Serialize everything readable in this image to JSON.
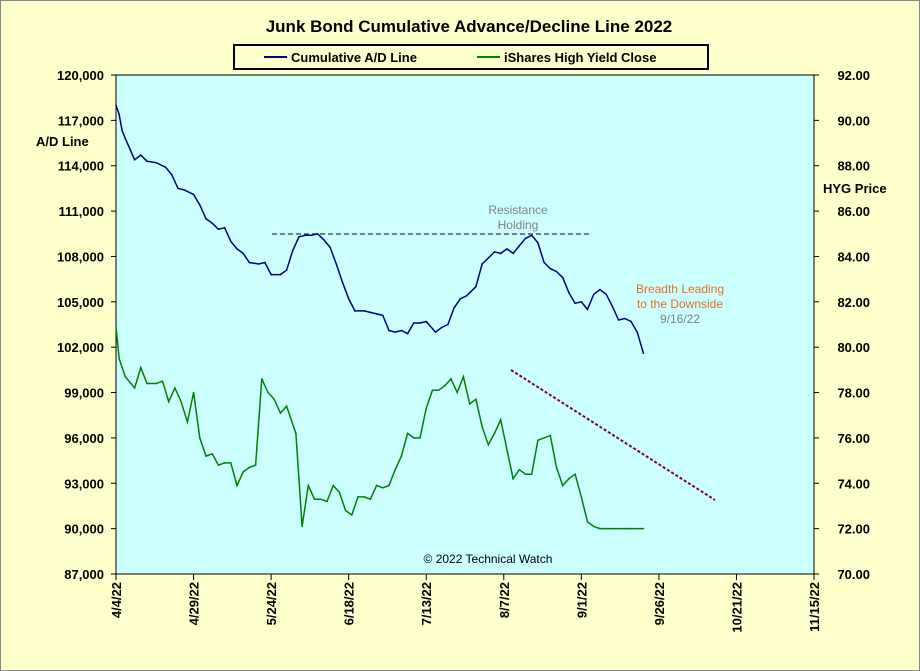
{
  "chart_data": {
    "type": "line",
    "title": "Junk Bond Cumulative  Advance/Decline  Line 2022",
    "ylabel_left": "A/D Line",
    "ylabel_right": "HYG Price",
    "ylim_left": [
      87000,
      120000
    ],
    "ylim_right": [
      70,
      92
    ],
    "left_ticks": [
      "120,000",
      "117,000",
      "114,000",
      "111,000",
      "108,000",
      "105,000",
      "102,000",
      "99,000",
      "96,000",
      "93,000",
      "90,000",
      "87,000"
    ],
    "right_ticks": [
      "92.00",
      "90.00",
      "88.00",
      "86.00",
      "84.00",
      "82.00",
      "80.00",
      "78.00",
      "76.00",
      "74.00",
      "72.00",
      "70.00"
    ],
    "x_ticks": [
      "4/4/22",
      "4/29/22",
      "5/24/22",
      "6/18/22",
      "7/13/22",
      "8/7/22",
      "9/1/22",
      "9/26/22",
      "10/21/22",
      "11/15/22"
    ],
    "legend": {
      "placement": "top-center",
      "items": [
        "Cumulative A/D Line",
        "iShares High Yield Close"
      ]
    },
    "colors": {
      "ad_line": "#000080",
      "hyg": "#008000",
      "plot_bg": "#CCFFFF",
      "page_bg": "#FFFFCC",
      "trend": "#800040",
      "resistance": "#555555"
    },
    "series": [
      {
        "name": "Cumulative A/D Line",
        "axis": "left",
        "x": [
          0,
          1,
          2,
          3,
          6,
          8,
          10,
          13,
          16,
          18,
          20,
          22,
          25,
          27,
          29,
          31,
          33,
          35,
          37,
          39,
          41,
          43,
          46,
          48,
          50,
          53,
          55,
          57,
          59,
          61,
          63,
          65,
          67,
          69,
          71,
          73,
          75,
          77,
          80,
          82,
          84,
          86,
          88,
          90,
          92,
          94,
          96,
          98,
          100,
          103,
          105,
          107,
          109,
          111,
          113,
          116,
          118,
          120,
          122,
          124,
          126,
          128,
          130,
          132,
          134,
          136,
          138,
          140,
          142,
          144,
          146,
          148,
          150,
          152,
          154,
          156,
          158,
          160,
          162,
          164,
          166,
          168,
          170
        ],
        "values": [
          118000,
          117400,
          116300,
          115800,
          114400,
          114700,
          114300,
          114200,
          113900,
          113400,
          112500,
          112400,
          112100,
          111400,
          110500,
          110200,
          109800,
          109900,
          109000,
          108500,
          108200,
          107600,
          107500,
          107600,
          106800,
          106800,
          107100,
          108400,
          109300,
          109400,
          109400,
          109500,
          109100,
          108600,
          107500,
          106300,
          105200,
          104400,
          104400,
          104300,
          104200,
          104100,
          103100,
          103000,
          103100,
          102900,
          103600,
          103600,
          103700,
          103000,
          103300,
          103500,
          104600,
          105200,
          105400,
          106000,
          107500,
          107900,
          108300,
          108200,
          108500,
          108200,
          108700,
          109200,
          109400,
          108900,
          107600,
          107200,
          107000,
          106600,
          105600,
          104900,
          105000,
          104500,
          105500,
          105800,
          105500,
          104700,
          103800,
          103900,
          103700,
          103000,
          101600
        ]
      },
      {
        "name": "iShares High Yield Close",
        "axis": "right",
        "x": [
          0,
          1,
          2,
          3,
          6,
          8,
          10,
          13,
          15,
          17,
          19,
          21,
          23,
          25,
          27,
          29,
          31,
          33,
          35,
          37,
          39,
          41,
          43,
          45,
          47,
          49,
          51,
          53,
          55,
          58,
          60,
          62,
          64,
          66,
          68,
          70,
          72,
          74,
          76,
          78,
          80,
          82,
          84,
          86,
          88,
          90,
          92,
          94,
          96,
          98,
          100,
          102,
          104,
          106,
          108,
          110,
          112,
          114,
          116,
          118,
          120,
          122,
          124,
          126,
          128,
          130,
          132,
          134,
          136,
          138,
          140,
          142,
          144,
          146,
          148,
          150,
          152,
          154,
          156,
          158,
          160,
          162,
          164,
          166,
          168,
          170
        ],
        "values": [
          80.9,
          79.5,
          79.1,
          78.7,
          78.2,
          79.1,
          78.4,
          78.4,
          78.5,
          77.6,
          78.2,
          77.6,
          76.7,
          78.0,
          76.0,
          75.2,
          75.3,
          74.8,
          74.9,
          74.9,
          73.9,
          74.5,
          74.7,
          74.8,
          78.6,
          78.0,
          77.7,
          77.1,
          77.4,
          76.2,
          72.1,
          73.9,
          73.3,
          73.3,
          73.2,
          73.9,
          73.6,
          72.8,
          72.6,
          73.4,
          73.4,
          73.3,
          73.9,
          73.8,
          73.9,
          74.6,
          75.2,
          76.2,
          76.0,
          76.0,
          77.3,
          78.1,
          78.1,
          78.3,
          78.6,
          78.0,
          78.7,
          77.5,
          77.7,
          76.5,
          75.7,
          76.2,
          76.8,
          75.5,
          74.2,
          74.6,
          74.4,
          74.4,
          75.9,
          76.0,
          76.1,
          74.7,
          73.9,
          74.2,
          74.4,
          73.4,
          72.3,
          72.1,
          72.0,
          72.0,
          72.0,
          72.0,
          72.0,
          72.0,
          72.0,
          72.0
        ]
      }
    ],
    "annotations": {
      "copyright": "© 2022 Technical Watch",
      "resistance_line1": "Resistance",
      "resistance_line2": "Holding",
      "breadth_line1": "Breadth Leading",
      "breadth_line2": "to the Downside",
      "breadth_date": "9/16/22"
    }
  }
}
